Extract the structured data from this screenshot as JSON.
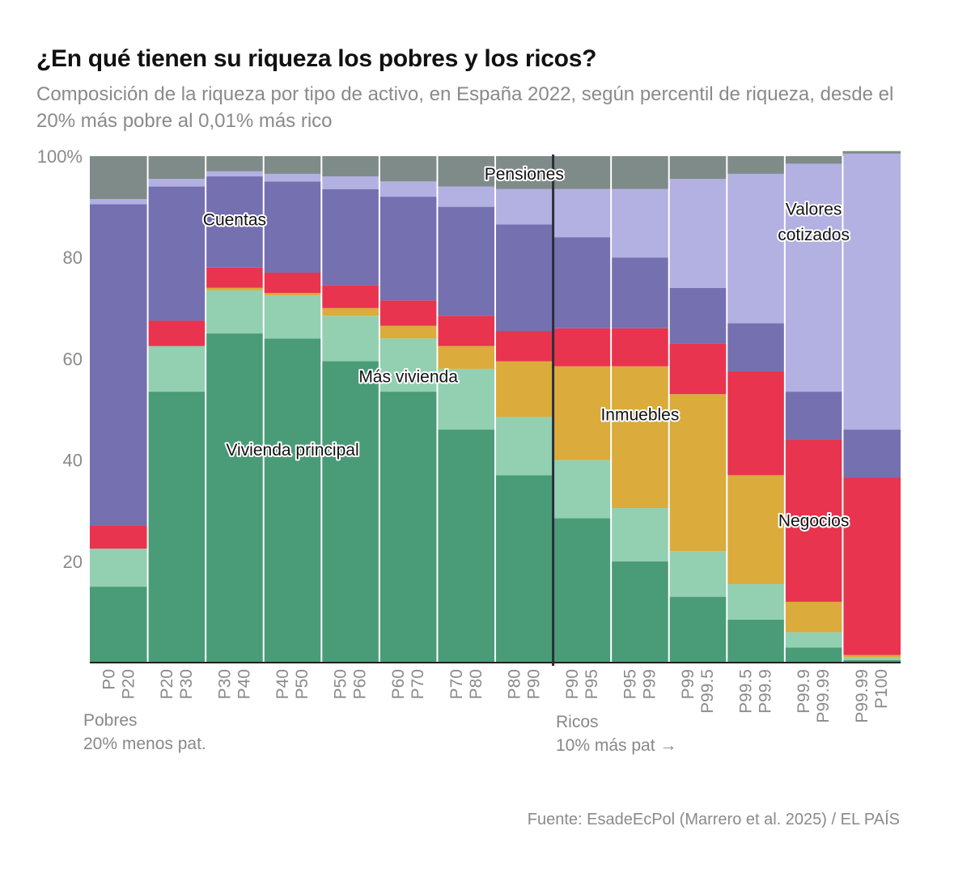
{
  "header": {
    "title": "¿En qué tienen su riqueza los pobres y los ricos?",
    "subtitle": "Composición de la riqueza por tipo de activo, en España 2022, según percentil de riqueza, desde el 20% más pobre al 0,01% más rico"
  },
  "footer": {
    "source": "Fuente: EsadeEcPol (Marrero et al. 2025) / EL PAÍS"
  },
  "groups": {
    "poor_line1": "Pobres",
    "poor_line2": "20% menos pat.",
    "rich_line1": "Ricos",
    "rich_line2": "10% más pat →"
  },
  "chart_data": {
    "type": "bar",
    "stacked": true,
    "ylim": [
      0,
      100
    ],
    "y_ticks": [
      "20",
      "40",
      "60",
      "80",
      "100%"
    ],
    "y_tick_values": [
      20,
      40,
      60,
      80,
      100
    ],
    "grid": false,
    "categories": [
      [
        "P0",
        "P20"
      ],
      [
        "P20",
        "P30"
      ],
      [
        "P30",
        "P40"
      ],
      [
        "P40",
        "P50"
      ],
      [
        "P50",
        "P60"
      ],
      [
        "P60",
        "P70"
      ],
      [
        "P70",
        "P80"
      ],
      [
        "P80",
        "P90"
      ],
      [
        "P90",
        "P95"
      ],
      [
        "P95",
        "P99"
      ],
      [
        "P99",
        "P99.5"
      ],
      [
        "P99.5",
        "P99.9"
      ],
      [
        "P99.9",
        "P99.99"
      ],
      [
        "P99.99",
        "P100"
      ]
    ],
    "divider_after_index": 7,
    "series": [
      {
        "name": "Vivienda principal",
        "color": "#4a9c78",
        "values": [
          15,
          53.5,
          65,
          64,
          59.5,
          53.5,
          46,
          37,
          28.5,
          20,
          13,
          8.5,
          3,
          0.5
        ]
      },
      {
        "name": "Más vivienda",
        "color": "#93cfb1",
        "values": [
          7.5,
          9,
          8.5,
          8.5,
          9,
          10.5,
          12,
          11.5,
          11.5,
          10.5,
          9,
          7,
          3,
          0.5
        ]
      },
      {
        "name": "Inmuebles",
        "color": "#dbab3c",
        "values": [
          0,
          0,
          0.5,
          0.5,
          1.5,
          2.5,
          4.5,
          11,
          18.5,
          28,
          31,
          21.5,
          6,
          0.5
        ]
      },
      {
        "name": "Negocios",
        "color": "#e8344e",
        "values": [
          4.5,
          5,
          4,
          4,
          4.5,
          5,
          6,
          6,
          7.5,
          7.5,
          10,
          20.5,
          32,
          35
        ]
      },
      {
        "name": "Cuentas",
        "color": "#7570b0",
        "values": [
          63.5,
          26.5,
          18,
          18,
          19,
          20.5,
          21.5,
          21,
          18,
          14,
          11,
          9.5,
          9.5,
          9.5
        ]
      },
      {
        "name": "Valores cotizados",
        "color": "#b3b0e2",
        "values": [
          1,
          1.5,
          1,
          1.5,
          2.5,
          3,
          4,
          7,
          9.5,
          13.5,
          21.5,
          29.5,
          45,
          54.5
        ]
      },
      {
        "name": "Pensiones",
        "color": "#7f8b89",
        "values": [
          8.5,
          4.5,
          3,
          3.5,
          4,
          5,
          6,
          6.5,
          6.5,
          6.5,
          4.5,
          3.5,
          1.5,
          0.5
        ]
      }
    ],
    "labels": [
      {
        "text": "Cuentas",
        "series": "Cuentas",
        "index": 2,
        "y": 87.5
      },
      {
        "text": "Pensiones",
        "series": "Pensiones",
        "index": 7,
        "y": 96.5
      },
      {
        "text": "Más vivienda",
        "series": "Más vivienda",
        "index": 5,
        "y": 56.5
      },
      {
        "text": "Vivienda principal",
        "series": "Vivienda principal",
        "index": 3,
        "y": 42
      },
      {
        "text": "Inmuebles",
        "series": "Inmuebles",
        "index": 9,
        "y": 49
      },
      {
        "text": "Valores",
        "series": "Valores cotizados",
        "index": 12,
        "y": 89.5
      },
      {
        "text": "cotizados",
        "series": "Valores cotizados",
        "index": 12,
        "y": 84.5
      },
      {
        "text": "Negocios",
        "series": "Negocios",
        "index": 12,
        "y": 28
      }
    ]
  }
}
